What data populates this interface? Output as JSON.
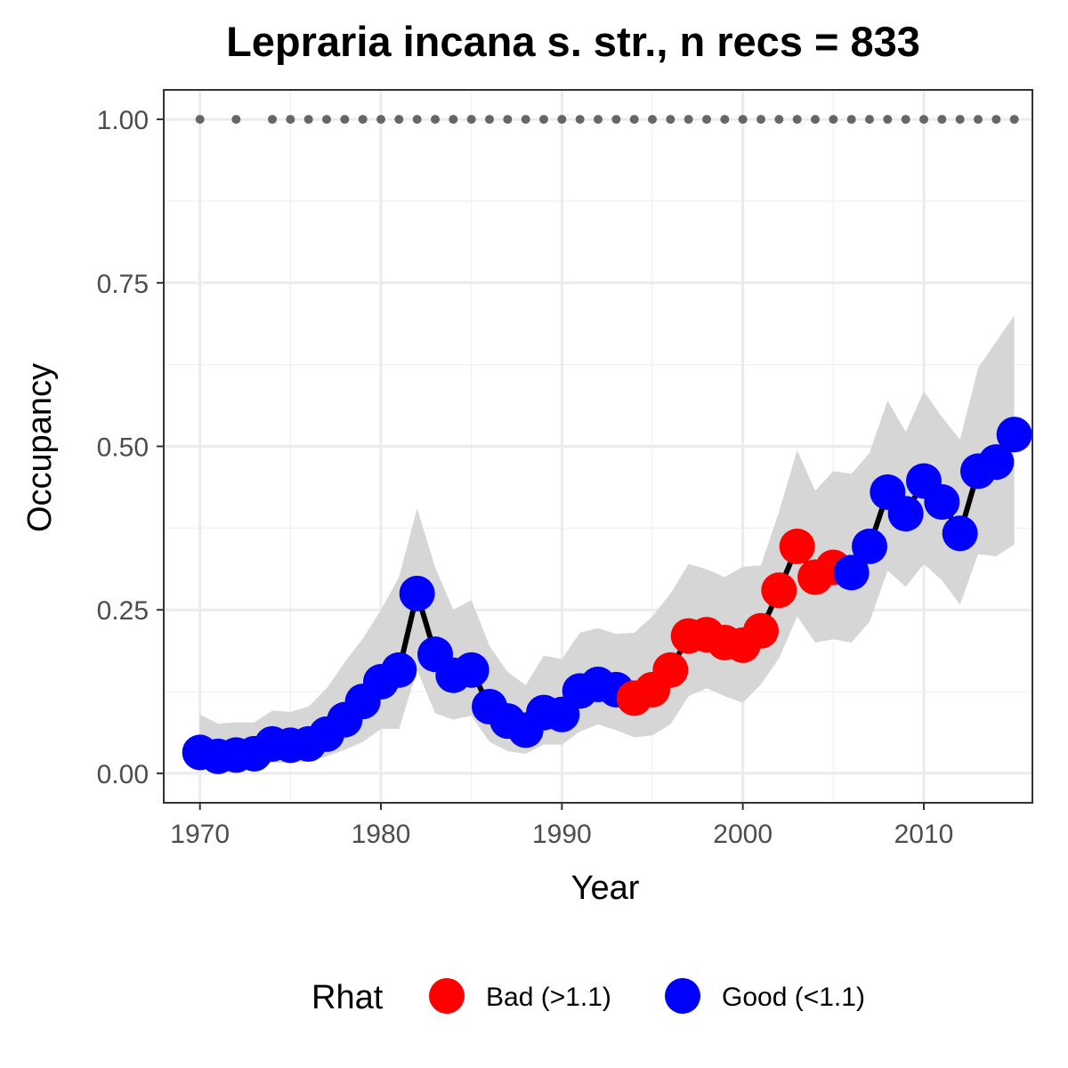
{
  "chart_data": {
    "type": "line",
    "title": "Lepraria incana s. str., n recs = 833",
    "xlabel": "Year",
    "ylabel": "Occupancy",
    "xlim": [
      1968,
      2016
    ],
    "ylim": [
      -0.045,
      1.045
    ],
    "x_ticks": [
      1970,
      1980,
      1990,
      2000,
      2010
    ],
    "x_tick_labels": [
      "1970",
      "1980",
      "1990",
      "2000",
      "2010"
    ],
    "y_ticks": [
      0.0,
      0.25,
      0.5,
      0.75,
      1.0
    ],
    "y_tick_labels": [
      "0.00",
      "0.25",
      "0.50",
      "0.75",
      "1.00"
    ],
    "grid": true,
    "legend": {
      "title": "Rhat",
      "position": "bottom",
      "entries": [
        {
          "label": "Bad (>1.1)",
          "color": "#ff0000"
        },
        {
          "label": "Good (<1.1)",
          "color": "#0000ff"
        }
      ]
    },
    "colors": {
      "bad": "#ff0000",
      "good": "#0000ff",
      "line": "#000000",
      "ribbon": "#d6d6d6",
      "record_dots": "#666666"
    },
    "occupancy": [
      {
        "year": 1970,
        "value": 0.032,
        "lower": 0.01,
        "upper": 0.09,
        "rhat": "good"
      },
      {
        "year": 1971,
        "value": 0.026,
        "lower": 0.008,
        "upper": 0.076,
        "rhat": "good"
      },
      {
        "year": 1972,
        "value": 0.028,
        "lower": 0.008,
        "upper": 0.078,
        "rhat": "good"
      },
      {
        "year": 1973,
        "value": 0.03,
        "lower": 0.01,
        "upper": 0.078,
        "rhat": "good"
      },
      {
        "year": 1974,
        "value": 0.045,
        "lower": 0.016,
        "upper": 0.096,
        "rhat": "good"
      },
      {
        "year": 1975,
        "value": 0.043,
        "lower": 0.016,
        "upper": 0.094,
        "rhat": "good"
      },
      {
        "year": 1976,
        "value": 0.045,
        "lower": 0.018,
        "upper": 0.102,
        "rhat": "good"
      },
      {
        "year": 1977,
        "value": 0.06,
        "lower": 0.026,
        "upper": 0.13,
        "rhat": "good"
      },
      {
        "year": 1978,
        "value": 0.082,
        "lower": 0.036,
        "upper": 0.17,
        "rhat": "good"
      },
      {
        "year": 1979,
        "value": 0.11,
        "lower": 0.048,
        "upper": 0.206,
        "rhat": "good"
      },
      {
        "year": 1980,
        "value": 0.14,
        "lower": 0.068,
        "upper": 0.25,
        "rhat": "good"
      },
      {
        "year": 1981,
        "value": 0.158,
        "lower": 0.068,
        "upper": 0.3,
        "rhat": "good"
      },
      {
        "year": 1982,
        "value": 0.275,
        "lower": 0.158,
        "upper": 0.405,
        "rhat": "good"
      },
      {
        "year": 1983,
        "value": 0.182,
        "lower": 0.092,
        "upper": 0.315,
        "rhat": "good"
      },
      {
        "year": 1984,
        "value": 0.15,
        "lower": 0.082,
        "upper": 0.25,
        "rhat": "good"
      },
      {
        "year": 1985,
        "value": 0.158,
        "lower": 0.088,
        "upper": 0.265,
        "rhat": "good"
      },
      {
        "year": 1986,
        "value": 0.102,
        "lower": 0.048,
        "upper": 0.195,
        "rhat": "good"
      },
      {
        "year": 1987,
        "value": 0.08,
        "lower": 0.034,
        "upper": 0.155,
        "rhat": "good"
      },
      {
        "year": 1988,
        "value": 0.066,
        "lower": 0.03,
        "upper": 0.135,
        "rhat": "good"
      },
      {
        "year": 1989,
        "value": 0.093,
        "lower": 0.044,
        "upper": 0.18,
        "rhat": "good"
      },
      {
        "year": 1990,
        "value": 0.09,
        "lower": 0.044,
        "upper": 0.175,
        "rhat": "good"
      },
      {
        "year": 1991,
        "value": 0.126,
        "lower": 0.064,
        "upper": 0.215,
        "rhat": "good"
      },
      {
        "year": 1992,
        "value": 0.136,
        "lower": 0.075,
        "upper": 0.222,
        "rhat": "good"
      },
      {
        "year": 1993,
        "value": 0.128,
        "lower": 0.066,
        "upper": 0.213,
        "rhat": "good"
      },
      {
        "year": 1994,
        "value": 0.115,
        "lower": 0.055,
        "upper": 0.215,
        "rhat": "bad"
      },
      {
        "year": 1995,
        "value": 0.128,
        "lower": 0.058,
        "upper": 0.24,
        "rhat": "bad"
      },
      {
        "year": 1996,
        "value": 0.158,
        "lower": 0.075,
        "upper": 0.275,
        "rhat": "bad"
      },
      {
        "year": 1997,
        "value": 0.21,
        "lower": 0.118,
        "upper": 0.32,
        "rhat": "bad"
      },
      {
        "year": 1998,
        "value": 0.212,
        "lower": 0.13,
        "upper": 0.312,
        "rhat": "bad"
      },
      {
        "year": 1999,
        "value": 0.2,
        "lower": 0.118,
        "upper": 0.3,
        "rhat": "bad"
      },
      {
        "year": 2000,
        "value": 0.196,
        "lower": 0.108,
        "upper": 0.316,
        "rhat": "bad"
      },
      {
        "year": 2001,
        "value": 0.218,
        "lower": 0.136,
        "upper": 0.318,
        "rhat": "bad"
      },
      {
        "year": 2002,
        "value": 0.28,
        "lower": 0.176,
        "upper": 0.4,
        "rhat": "bad"
      },
      {
        "year": 2003,
        "value": 0.347,
        "lower": 0.24,
        "upper": 0.494,
        "rhat": "bad"
      },
      {
        "year": 2004,
        "value": 0.3,
        "lower": 0.2,
        "upper": 0.432,
        "rhat": "bad"
      },
      {
        "year": 2005,
        "value": 0.315,
        "lower": 0.205,
        "upper": 0.462,
        "rhat": "bad"
      },
      {
        "year": 2006,
        "value": 0.307,
        "lower": 0.2,
        "upper": 0.458,
        "rhat": "good"
      },
      {
        "year": 2007,
        "value": 0.347,
        "lower": 0.232,
        "upper": 0.49,
        "rhat": "good"
      },
      {
        "year": 2008,
        "value": 0.43,
        "lower": 0.31,
        "upper": 0.57,
        "rhat": "good"
      },
      {
        "year": 2009,
        "value": 0.397,
        "lower": 0.285,
        "upper": 0.522,
        "rhat": "good"
      },
      {
        "year": 2010,
        "value": 0.447,
        "lower": 0.32,
        "upper": 0.584,
        "rhat": "good"
      },
      {
        "year": 2011,
        "value": 0.415,
        "lower": 0.295,
        "upper": 0.545,
        "rhat": "good"
      },
      {
        "year": 2012,
        "value": 0.367,
        "lower": 0.258,
        "upper": 0.51,
        "rhat": "good"
      },
      {
        "year": 2013,
        "value": 0.462,
        "lower": 0.335,
        "upper": 0.62,
        "rhat": "good"
      },
      {
        "year": 2014,
        "value": 0.476,
        "lower": 0.332,
        "upper": 0.66,
        "rhat": "good"
      },
      {
        "year": 2015,
        "value": 0.518,
        "lower": 0.35,
        "upper": 0.7,
        "rhat": "good"
      }
    ],
    "record_years": {
      "y_value": 1.0,
      "years": [
        1970,
        1972,
        1974,
        1975,
        1976,
        1977,
        1978,
        1979,
        1980,
        1981,
        1982,
        1983,
        1984,
        1985,
        1986,
        1987,
        1988,
        1989,
        1990,
        1991,
        1992,
        1993,
        1994,
        1995,
        1996,
        1997,
        1998,
        1999,
        2000,
        2001,
        2002,
        2003,
        2004,
        2005,
        2006,
        2007,
        2008,
        2009,
        2010,
        2011,
        2012,
        2013,
        2014,
        2015
      ]
    }
  }
}
